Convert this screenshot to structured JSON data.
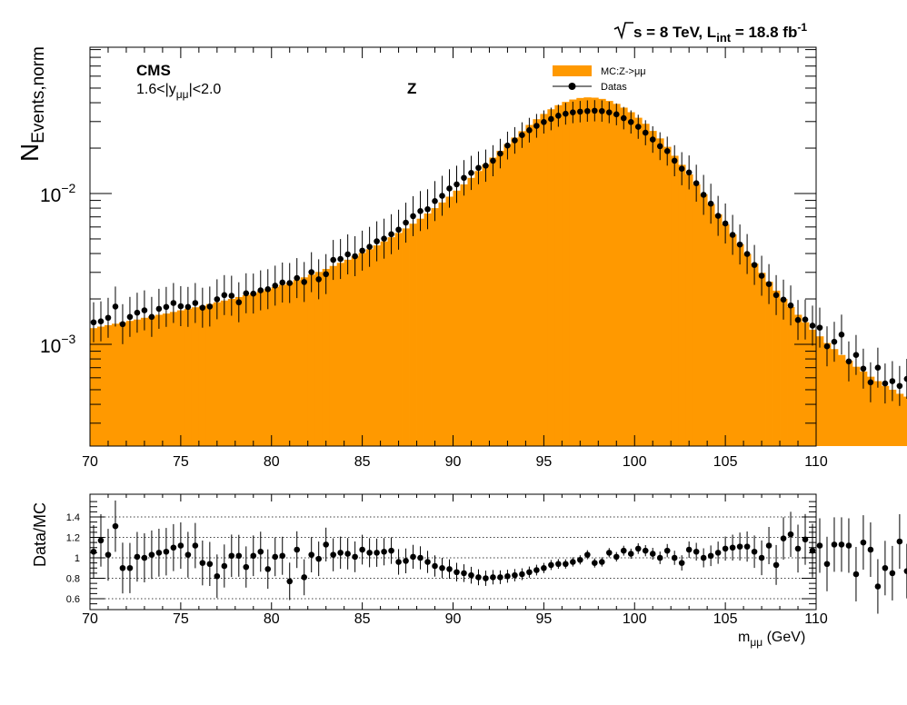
{
  "header": {
    "energy_label": "s = 8 TeV, L",
    "lumi_sub": "int",
    "lumi_value": " = 18.8 fb",
    "lumi_sup": "-1"
  },
  "labels": {
    "experiment": "CMS",
    "rapidity_main": "1.6<|y",
    "rapidity_sub": "μμ",
    "rapidity_tail": "|<2.0",
    "resonance": "Z"
  },
  "legend": {
    "mc_label": "MC:Z->μμ",
    "data_label": "Datas",
    "position": "top-right"
  },
  "colors": {
    "mc_fill": "#ff9900",
    "data_marker": "#000000",
    "grid": "#000000"
  },
  "chart_data": [
    {
      "type": "histogram",
      "title": "",
      "ylabel": "N",
      "ylabel_sub": "Events,norm",
      "xlim": [
        70,
        110
      ],
      "ylog": true,
      "xticks": [
        "70",
        "75",
        "80",
        "85",
        "90",
        "95",
        "100",
        "105",
        "110"
      ],
      "yticks": [
        {
          "base": "10",
          "exp": "−3",
          "value": 0.001
        },
        {
          "base": "10",
          "exp": "−2",
          "value": 0.01
        }
      ],
      "bin_width": 0.4,
      "series": [
        {
          "name": "MC:Z->μμ",
          "kind": "filled-histogram",
          "values": [
            0.00128,
            0.00131,
            0.00134,
            0.00137,
            0.0014,
            0.00143,
            0.00146,
            0.0015,
            0.00153,
            0.00157,
            0.0016,
            0.00164,
            0.00168,
            0.00172,
            0.00176,
            0.0018,
            0.00185,
            0.0019,
            0.00195,
            0.002,
            0.00206,
            0.00212,
            0.00218,
            0.00225,
            0.00232,
            0.0024,
            0.00248,
            0.00257,
            0.00267,
            0.00278,
            0.0029,
            0.00302,
            0.00316,
            0.00331,
            0.00347,
            0.00364,
            0.00383,
            0.00404,
            0.00427,
            0.00453,
            0.00481,
            0.00513,
            0.00548,
            0.00587,
            0.00631,
            0.00681,
            0.00737,
            0.008,
            0.00872,
            0.00953,
            0.01045,
            0.0115,
            0.0127,
            0.0141,
            0.0156,
            0.0173,
            0.0192,
            0.0213,
            0.0235,
            0.0259,
            0.0285,
            0.0311,
            0.0337,
            0.0362,
            0.0385,
            0.0405,
            0.042,
            0.043,
            0.0434,
            0.0432,
            0.0424,
            0.0411,
            0.0393,
            0.0371,
            0.0346,
            0.0318,
            0.029,
            0.026,
            0.0232,
            0.0204,
            0.0178,
            0.0155,
            0.0134,
            0.0115,
            0.0099,
            0.0085,
            0.00728,
            0.00624,
            0.00536,
            0.00461,
            0.00397,
            0.00343,
            0.00298,
            0.0026,
            0.00227,
            0.002,
            0.00177,
            0.00157,
            0.0014,
            0.00125,
            0.00113,
            0.00102,
            0.00093,
            0.00085,
            0.00078,
            0.00071,
            0.00066,
            0.00061,
            0.00057,
            0.00053,
            0.0005,
            0.00047,
            0.00045,
            0.00043,
            0.00041,
            0.00039,
            0.00038,
            0.00036,
            0.00035,
            0.00034
          ]
        },
        {
          "name": "Datas",
          "kind": "points",
          "values": [
            0.0014,
            0.00142,
            0.0015,
            0.00178,
            0.00136,
            0.00152,
            0.00162,
            0.00168,
            0.00152,
            0.00172,
            0.00177,
            0.00188,
            0.00179,
            0.00177,
            0.00188,
            0.00175,
            0.00178,
            0.00199,
            0.00212,
            0.0021,
            0.0019,
            0.00218,
            0.00217,
            0.00228,
            0.00232,
            0.00245,
            0.00257,
            0.00255,
            0.00275,
            0.00259,
            0.00301,
            0.0027,
            0.00292,
            0.00363,
            0.00368,
            0.00395,
            0.00384,
            0.00418,
            0.00443,
            0.00482,
            0.00502,
            0.00537,
            0.00576,
            0.00641,
            0.00708,
            0.00765,
            0.00787,
            0.00891,
            0.00966,
            0.0108,
            0.0115,
            0.0127,
            0.0137,
            0.0148,
            0.0153,
            0.0165,
            0.0184,
            0.0208,
            0.0225,
            0.0244,
            0.0263,
            0.0281,
            0.0298,
            0.0312,
            0.0328,
            0.0338,
            0.0345,
            0.0349,
            0.0352,
            0.0354,
            0.0352,
            0.0345,
            0.0335,
            0.0316,
            0.0298,
            0.0277,
            0.0253,
            0.0228,
            0.0206,
            0.0191,
            0.0165,
            0.0146,
            0.0138,
            0.0117,
            0.0098,
            0.00856,
            0.00711,
            0.00633,
            0.00532,
            0.00459,
            0.00397,
            0.00336,
            0.00285,
            0.00251,
            0.00212,
            0.00198,
            0.00181,
            0.00145,
            0.00146,
            0.00133,
            0.00129,
            0.00097,
            0.00104,
            0.00116,
            0.00077,
            0.00085,
            0.00069,
            0.00056,
            0.0007,
            0.00055,
            0.00057,
            0.00053,
            0.00059,
            0.00061,
            0.0005,
            0.00051,
            0.0004,
            0.00052,
            0.0004,
            0.00044
          ]
        }
      ]
    },
    {
      "type": "scatter",
      "title": "",
      "ylabel": "Data/MC",
      "xlabel": "m",
      "xlabel_sub": "μμ",
      "xlabel_unit": " (GeV)",
      "xlim": [
        70,
        110
      ],
      "ylim": [
        0.53,
        1.57
      ],
      "grid": true,
      "xticks": [
        "70",
        "75",
        "80",
        "85",
        "90",
        "95",
        "100",
        "105",
        "110"
      ],
      "yticks": [
        "0.6",
        "0.8",
        "1",
        "1.2",
        "1.4"
      ],
      "series": [
        {
          "name": "Data/MC",
          "values": [
            1.06,
            1.17,
            1.03,
            1.31,
            0.9,
            0.9,
            1.01,
            1.0,
            1.03,
            1.05,
            1.06,
            1.1,
            1.12,
            1.03,
            1.12,
            0.95,
            0.94,
            0.82,
            0.92,
            1.02,
            1.02,
            0.91,
            1.02,
            1.06,
            0.89,
            1.01,
            1.02,
            0.77,
            1.08,
            0.81,
            1.03,
            0.99,
            1.13,
            1.03,
            1.05,
            1.04,
            1.01,
            1.08,
            1.05,
            1.05,
            1.06,
            1.07,
            0.96,
            0.97,
            1.01,
            1.0,
            0.96,
            0.92,
            0.9,
            0.89,
            0.86,
            0.85,
            0.83,
            0.81,
            0.8,
            0.81,
            0.81,
            0.82,
            0.83,
            0.84,
            0.86,
            0.88,
            0.9,
            0.93,
            0.94,
            0.94,
            0.96,
            0.98,
            1.03,
            0.95,
            0.96,
            1.05,
            1.01,
            1.07,
            1.04,
            1.09,
            1.07,
            1.04,
            1.0,
            1.07,
            1.0,
            0.95,
            1.08,
            1.06,
            1.0,
            1.02,
            1.05,
            1.09,
            1.1,
            1.11,
            1.11,
            1.06,
            1.0,
            1.12,
            0.93,
            1.19,
            1.23,
            1.09,
            1.18,
            1.07,
            1.12,
            0.94,
            1.13,
            1.13,
            1.12,
            0.84,
            1.15,
            1.08,
            0.72,
            0.9,
            0.85,
            1.16,
            0.87,
            0.85,
            1.31,
            0.85,
            0.88,
            1.14,
            0.87,
            0.99
          ]
        }
      ]
    }
  ]
}
